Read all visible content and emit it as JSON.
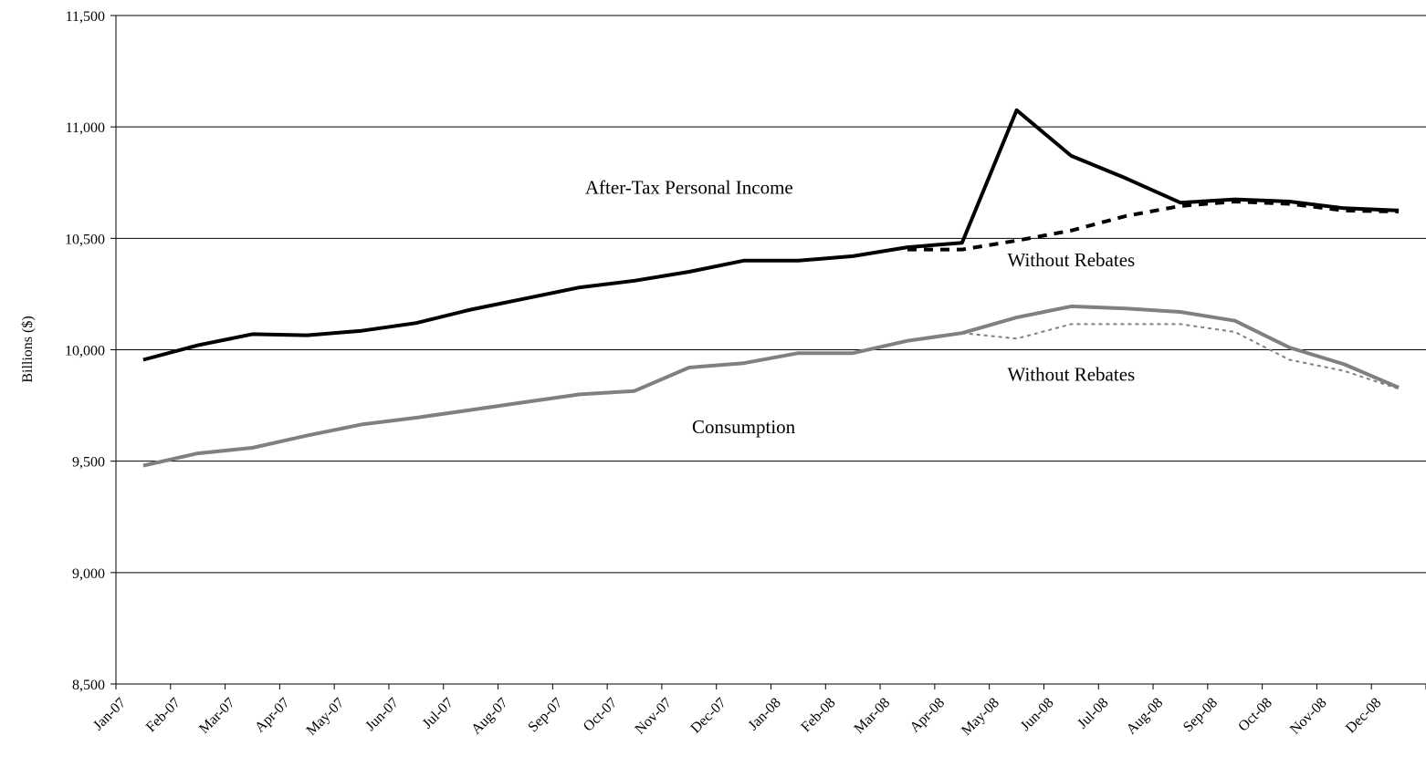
{
  "chart_data": {
    "type": "line",
    "title": "",
    "xlabel": "",
    "ylabel": "Billions ($)",
    "ylim": [
      8500,
      11500
    ],
    "yticks": [
      8500,
      9000,
      9500,
      10000,
      10500,
      11000,
      11500
    ],
    "ytick_labels": [
      "8,500",
      "9,000",
      "9,500",
      "10,000",
      "10,500",
      "11,000",
      "11,500"
    ],
    "grid": true,
    "categories": [
      "Jan-07",
      "Feb-07",
      "Mar-07",
      "Apr-07",
      "May-07",
      "Jun-07",
      "Jul-07",
      "Aug-07",
      "Sep-07",
      "Oct-07",
      "Nov-07",
      "Dec-07",
      "Jan-08",
      "Feb-08",
      "Mar-08",
      "Apr-08",
      "May-08",
      "Jun-08",
      "Jul-08",
      "Aug-08",
      "Sep-08",
      "Oct-08",
      "Nov-08",
      "Dec-08"
    ],
    "series": [
      {
        "name": "After-Tax Personal Income",
        "color": "#000000",
        "style": "solid",
        "x": [
          "Jan-07",
          "Feb-07",
          "Mar-07",
          "Apr-07",
          "May-07",
          "Jun-07",
          "Jul-07",
          "Aug-07",
          "Sep-07",
          "Oct-07",
          "Nov-07",
          "Dec-07",
          "Jan-08",
          "Feb-08",
          "Mar-08",
          "Apr-08",
          "May-08",
          "Jun-08",
          "Jul-08",
          "Aug-08",
          "Sep-08",
          "Oct-08",
          "Nov-08",
          "Dec-08"
        ],
        "values": [
          9955,
          10020,
          10070,
          10065,
          10085,
          10120,
          10180,
          10230,
          10280,
          10310,
          10350,
          10400,
          10400,
          10420,
          10460,
          10480,
          11075,
          10870,
          10770,
          10660,
          10675,
          10665,
          10635,
          10625
        ]
      },
      {
        "name": "Without Rebates",
        "color": "#000000",
        "style": "dashed",
        "x": [
          "Mar-08",
          "Apr-08",
          "May-08",
          "Jun-08",
          "Jul-08",
          "Aug-08",
          "Sep-08",
          "Oct-08",
          "Nov-08",
          "Dec-08"
        ],
        "values": [
          10450,
          10450,
          10490,
          10535,
          10600,
          10645,
          10665,
          10655,
          10625,
          10620
        ]
      },
      {
        "name": "Consumption",
        "color": "#808080",
        "style": "solid",
        "x": [
          "Jan-07",
          "Feb-07",
          "Mar-07",
          "Apr-07",
          "May-07",
          "Jun-07",
          "Jul-07",
          "Aug-07",
          "Sep-07",
          "Oct-07",
          "Nov-07",
          "Dec-07",
          "Jan-08",
          "Feb-08",
          "Mar-08",
          "Apr-08",
          "May-08",
          "Jun-08",
          "Jul-08",
          "Aug-08",
          "Sep-08",
          "Oct-08",
          "Nov-08",
          "Dec-08"
        ],
        "values": [
          9480,
          9535,
          9560,
          9615,
          9665,
          9695,
          9730,
          9765,
          9800,
          9815,
          9920,
          9940,
          9985,
          9985,
          10040,
          10075,
          10145,
          10195,
          10185,
          10170,
          10130,
          10010,
          9935,
          9830
        ]
      },
      {
        "name": "Without Rebates",
        "color": "#808080",
        "style": "dotted",
        "x": [
          "Apr-08",
          "May-08",
          "Jun-08",
          "Jul-08",
          "Aug-08",
          "Sep-08",
          "Oct-08",
          "Nov-08",
          "Dec-08"
        ],
        "values": [
          10075,
          10050,
          10115,
          10115,
          10115,
          10080,
          9955,
          9905,
          9825
        ]
      }
    ],
    "annotations": [
      {
        "text": "After-Tax Personal Income",
        "at": {
          "x": "Nov-07",
          "y": 10720
        }
      },
      {
        "text": "Without Rebates",
        "at": {
          "x": "Jun-08",
          "y": 10395
        }
      },
      {
        "text": "Without Rebates",
        "at": {
          "x": "Jun-08",
          "y": 9880
        }
      },
      {
        "text": "Consumption",
        "at": {
          "x": "Dec-07",
          "y": 9645
        }
      }
    ]
  }
}
